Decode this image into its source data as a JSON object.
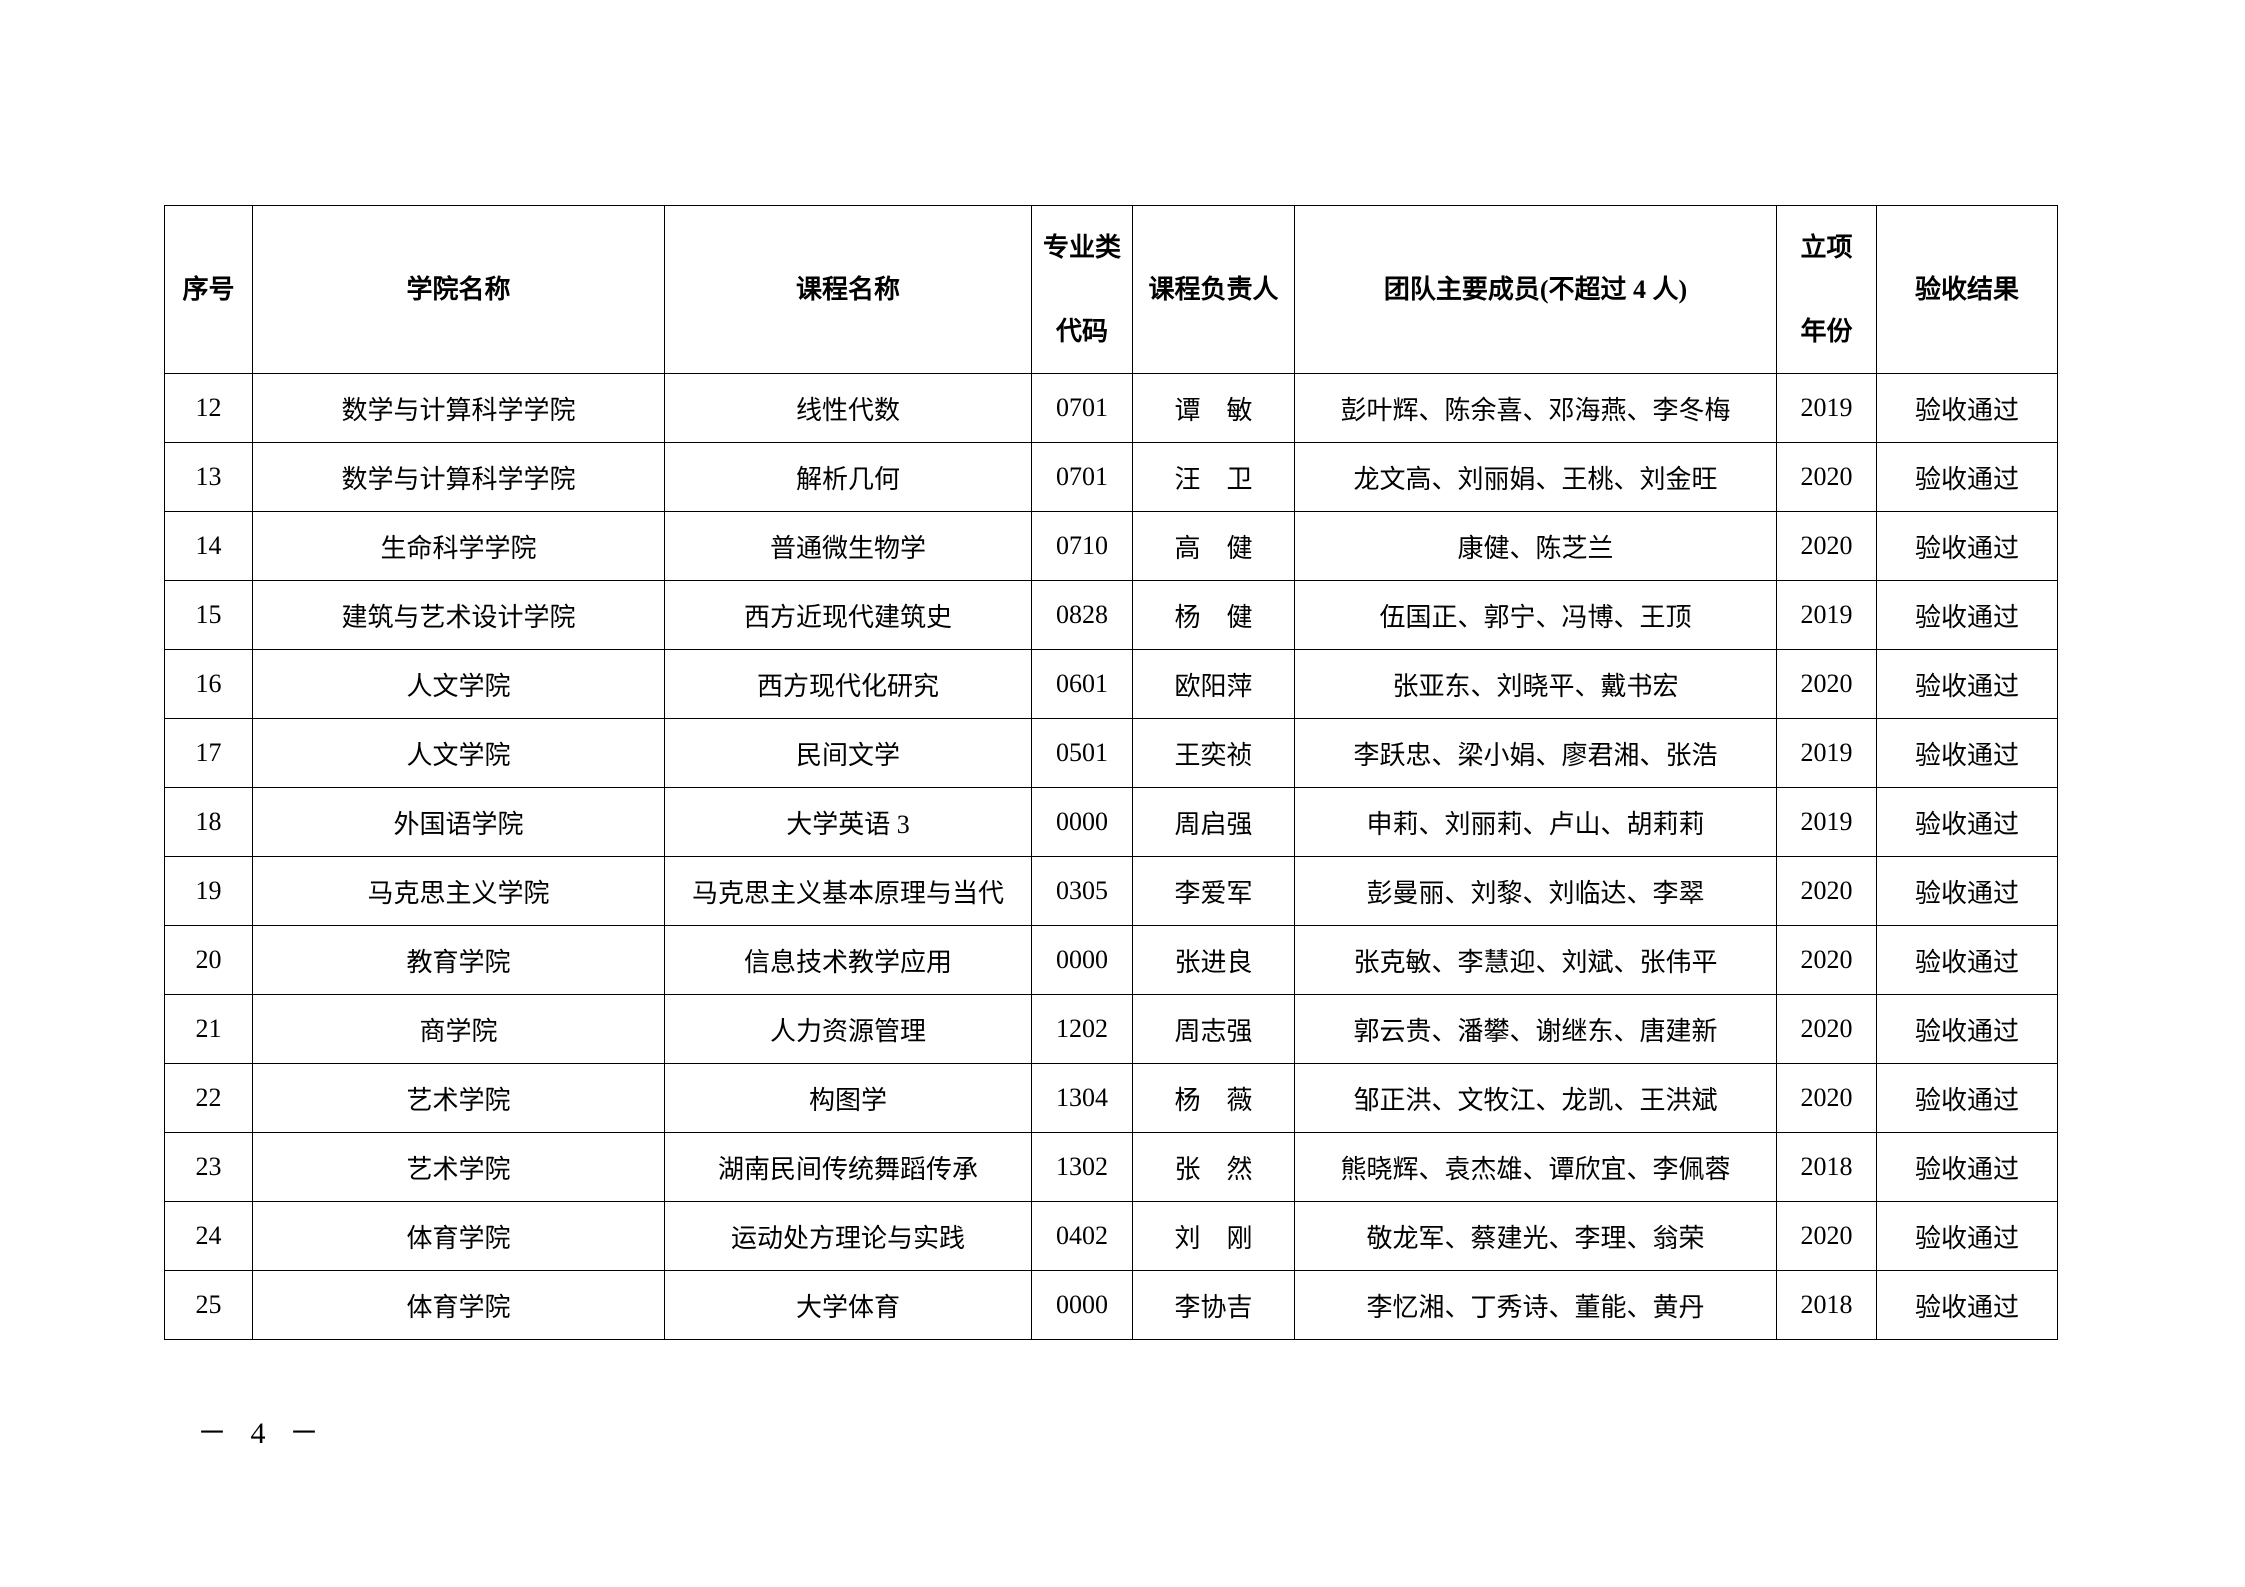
{
  "table": {
    "headers": {
      "seq": "序号",
      "college": "学院名称",
      "course": "课程名称",
      "code_line1": "专业类",
      "code_line2": "代码",
      "leader": "课程负责人",
      "members": "团队主要成员(不超过 4 人)",
      "year_line1": "立项",
      "year_line2": "年份",
      "result": "验收结果"
    },
    "rows": [
      {
        "seq": "12",
        "college": "数学与计算科学学院",
        "course": "线性代数",
        "code": "0701",
        "leader": "谭　敏",
        "members": "彭叶辉、陈余喜、邓海燕、李冬梅",
        "year": "2019",
        "result": "验收通过"
      },
      {
        "seq": "13",
        "college": "数学与计算科学学院",
        "course": "解析几何",
        "code": "0701",
        "leader": "汪　卫",
        "members": "龙文高、刘丽娟、王桃、刘金旺",
        "year": "2020",
        "result": "验收通过"
      },
      {
        "seq": "14",
        "college": "生命科学学院",
        "course": "普通微生物学",
        "code": "0710",
        "leader": "高　健",
        "members": "康健、陈芝兰",
        "year": "2020",
        "result": "验收通过"
      },
      {
        "seq": "15",
        "college": "建筑与艺术设计学院",
        "course": "西方近现代建筑史",
        "code": "0828",
        "leader": "杨　健",
        "members": "伍国正、郭宁、冯博、王顶",
        "year": "2019",
        "result": "验收通过"
      },
      {
        "seq": "16",
        "college": "人文学院",
        "course": "西方现代化研究",
        "code": "0601",
        "leader": "欧阳萍",
        "members": "张亚东、刘晓平、戴书宏",
        "year": "2020",
        "result": "验收通过"
      },
      {
        "seq": "17",
        "college": "人文学院",
        "course": "民间文学",
        "code": "0501",
        "leader": "王奕祯",
        "members": "李跃忠、梁小娟、廖君湘、张浩",
        "year": "2019",
        "result": "验收通过"
      },
      {
        "seq": "18",
        "college": "外国语学院",
        "course": "大学英语 3",
        "code": "0000",
        "leader": "周启强",
        "members": "申莉、刘丽莉、卢山、胡莉莉",
        "year": "2019",
        "result": "验收通过"
      },
      {
        "seq": "19",
        "college": "马克思主义学院",
        "course": "马克思主义基本原理与当代",
        "code": "0305",
        "leader": "李爱军",
        "members": "彭曼丽、刘黎、刘临达、李翠",
        "year": "2020",
        "result": "验收通过"
      },
      {
        "seq": "20",
        "college": "教育学院",
        "course": "信息技术教学应用",
        "code": "0000",
        "leader": "张进良",
        "members": "张克敏、李慧迎、刘斌、张伟平",
        "year": "2020",
        "result": "验收通过"
      },
      {
        "seq": "21",
        "college": "商学院",
        "course": "人力资源管理",
        "code": "1202",
        "leader": "周志强",
        "members": "郭云贵、潘攀、谢继东、唐建新",
        "year": "2020",
        "result": "验收通过"
      },
      {
        "seq": "22",
        "college": "艺术学院",
        "course": "构图学",
        "code": "1304",
        "leader": "杨　薇",
        "members": "邹正洪、文牧江、龙凯、王洪斌",
        "year": "2020",
        "result": "验收通过"
      },
      {
        "seq": "23",
        "college": "艺术学院",
        "course": "湖南民间传统舞蹈传承",
        "code": "1302",
        "leader": "张　然",
        "members": "熊晓辉、袁杰雄、谭欣宜、李佩蓉",
        "year": "2018",
        "result": "验收通过"
      },
      {
        "seq": "24",
        "college": "体育学院",
        "course": "运动处方理论与实践",
        "code": "0402",
        "leader": "刘　刚",
        "members": "敬龙军、蔡建光、李理、翁荣",
        "year": "2020",
        "result": "验收通过"
      },
      {
        "seq": "25",
        "college": "体育学院",
        "course": "大学体育",
        "code": "0000",
        "leader": "李协吉",
        "members": "李忆湘、丁秀诗、董能、黄丹",
        "year": "2018",
        "result": "验收通过"
      }
    ]
  },
  "footer": {
    "page_number": "－ 4 －"
  }
}
